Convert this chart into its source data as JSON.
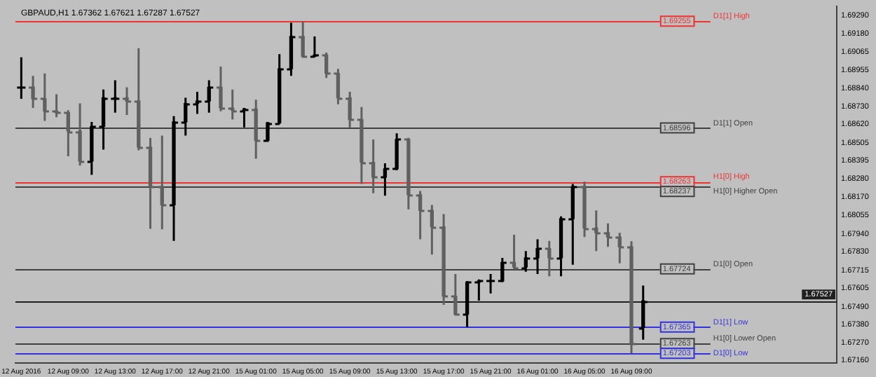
{
  "chart_data": {
    "type": "candlestick",
    "title": "GBPAUD,H1 1.67362 1.67621 1.67287 1.67527",
    "categories": [
      "12 Aug 2016",
      null,
      null,
      null,
      "12 Aug 09:00",
      null,
      null,
      null,
      "12 Aug 13:00",
      null,
      null,
      null,
      "12 Aug 17:00",
      null,
      null,
      null,
      "12 Aug 21:00",
      null,
      null,
      null,
      "15 Aug 01:00",
      null,
      null,
      null,
      "15 Aug 05:00",
      null,
      null,
      null,
      "15 Aug 09:00",
      null,
      null,
      null,
      "15 Aug 13:00",
      null,
      null,
      null,
      "15 Aug 17:00",
      null,
      null,
      null,
      "15 Aug 21:00",
      null,
      null,
      null,
      "16 Aug 01:00",
      null,
      null,
      null,
      "16 Aug 05:00",
      null,
      null,
      null,
      "16 Aug 09:00",
      null,
      null,
      null,
      null,
      null,
      null,
      null,
      null,
      null,
      null,
      null,
      null,
      null,
      null,
      null,
      null,
      null
    ],
    "ohlc": [
      [
        1.68847,
        1.69032,
        1.68776,
        1.68847
      ],
      [
        1.68847,
        1.68918,
        1.68719,
        1.68776
      ],
      [
        1.68776,
        1.68933,
        1.68639,
        1.68699
      ],
      [
        1.68699,
        1.68804,
        1.68662,
        1.6869
      ],
      [
        1.6869,
        1.68705,
        1.6842,
        1.68576
      ],
      [
        1.68576,
        1.68747,
        1.68363,
        1.68391
      ],
      [
        1.68391,
        1.68633,
        1.68306,
        1.68605
      ],
      [
        1.68605,
        1.68833,
        1.68462,
        1.68782
      ],
      [
        1.68782,
        1.6889,
        1.6869,
        1.68782
      ],
      [
        1.68782,
        1.68847,
        1.68676,
        1.68762
      ],
      [
        1.68762,
        1.69089,
        1.68457,
        1.68477
      ],
      [
        1.68477,
        1.68534,
        1.67972,
        1.68234
      ],
      [
        1.68234,
        1.68548,
        1.67969,
        1.6812
      ],
      [
        1.6812,
        1.68668,
        1.67898,
        1.68633
      ],
      [
        1.68633,
        1.68782,
        1.68548,
        1.68747
      ],
      [
        1.68747,
        1.68819,
        1.68682,
        1.68762
      ],
      [
        1.68762,
        1.6889,
        1.6869,
        1.68847
      ],
      [
        1.68847,
        1.68975,
        1.68699,
        1.68719
      ],
      [
        1.68719,
        1.68833,
        1.68648,
        1.68705
      ],
      [
        1.68705,
        1.68719,
        1.68599,
        1.68713
      ],
      [
        1.68713,
        1.6877,
        1.68405,
        1.68519
      ],
      [
        1.68519,
        1.68633,
        1.68519,
        1.68628
      ],
      [
        1.68628,
        1.69052,
        1.68619,
        1.68961
      ],
      [
        1.68961,
        1.69246,
        1.68918,
        1.69161
      ],
      [
        1.69161,
        1.69255,
        1.69032,
        1.69038
      ],
      [
        1.69038,
        1.69161,
        1.69032,
        1.69047
      ],
      [
        1.69047,
        1.69061,
        1.68904,
        1.68933
      ],
      [
        1.68933,
        1.68961,
        1.68742,
        1.68782
      ],
      [
        1.68782,
        1.68819,
        1.68599,
        1.68648
      ],
      [
        1.68648,
        1.68725,
        1.68249,
        1.68383
      ],
      [
        1.68383,
        1.68525,
        1.68192,
        1.68291
      ],
      [
        1.68291,
        1.68377,
        1.68177,
        1.68343
      ],
      [
        1.68343,
        1.68562,
        1.68334,
        1.68525
      ],
      [
        1.68525,
        1.68534,
        1.68092,
        1.68183
      ],
      [
        1.68183,
        1.68206,
        1.67907,
        1.68086
      ],
      [
        1.68086,
        1.6812,
        1.67813,
        1.67984
      ],
      [
        1.67984,
        1.68063,
        1.67502,
        1.67556
      ],
      [
        1.67556,
        1.67693,
        1.67436,
        1.67445
      ],
      [
        1.67445,
        1.6765,
        1.67365,
        1.67642
      ],
      [
        1.67642,
        1.67659,
        1.67528,
        1.6765
      ],
      [
        1.6765,
        1.67693,
        1.67573,
        1.6765
      ],
      [
        1.6765,
        1.67793,
        1.67642,
        1.67764
      ],
      [
        1.67764,
        1.67935,
        1.67727,
        1.67736
      ],
      [
        1.67736,
        1.67835,
        1.67707,
        1.67793
      ],
      [
        1.67793,
        1.67907,
        1.67693,
        1.6785
      ],
      [
        1.6785,
        1.67898,
        1.67679,
        1.67793
      ],
      [
        1.67793,
        1.68049,
        1.67679,
        1.68035
      ],
      [
        1.68035,
        1.68249,
        1.6775,
        1.68234
      ],
      [
        1.68234,
        1.68263,
        1.67921,
        1.67978
      ],
      [
        1.67978,
        1.68086,
        1.67835,
        1.67949
      ],
      [
        1.67949,
        1.68006,
        1.67861,
        1.67921
      ],
      [
        1.67921,
        1.67947,
        1.67759,
        1.67861
      ],
      [
        1.67861,
        1.67895,
        1.67203,
        1.67263
      ],
      [
        1.67362,
        1.67621,
        1.67287,
        1.67527
      ],
      null,
      null,
      null,
      null,
      null,
      null,
      null,
      null,
      null,
      null,
      null,
      null,
      null,
      null,
      null,
      null
    ],
    "colors": [
      "#000000",
      "#606060",
      "#606060",
      "#606060",
      "#606060",
      "#606060",
      "#000000",
      "#000000",
      "#000000",
      "#606060",
      "#606060",
      "#606060",
      "#606060",
      "#000000",
      "#000000",
      "#000000",
      "#000000",
      "#606060",
      "#606060",
      "#000000",
      "#606060",
      "#000000",
      "#000000",
      "#000000",
      "#606060",
      "#000000",
      "#606060",
      "#606060",
      "#606060",
      "#606060",
      "#606060",
      "#000000",
      "#000000",
      "#606060",
      "#606060",
      "#606060",
      "#606060",
      "#606060",
      "#000000",
      "#000000",
      "#000000",
      "#000000",
      "#606060",
      "#000000",
      "#000000",
      "#606060",
      "#000000",
      "#000000",
      "#606060",
      "#606060",
      "#606060",
      "#606060",
      "#606060",
      "#000000",
      null,
      null,
      null,
      null,
      null,
      null,
      null,
      null,
      null,
      null,
      null,
      null,
      null,
      null,
      null,
      null
    ],
    "ylim": [
      1.67143,
      1.69349
    ],
    "yticks": [
      {
        "value": 1.6929,
        "label": "1.69290"
      },
      {
        "value": 1.6918,
        "label": "1.69180"
      },
      {
        "value": 1.69065,
        "label": "1.69065"
      },
      {
        "value": 1.68955,
        "label": "1.68955"
      },
      {
        "value": 1.6884,
        "label": "1.68840"
      },
      {
        "value": 1.6873,
        "label": "1.68730"
      },
      {
        "value": 1.6862,
        "label": "1.68620"
      },
      {
        "value": 1.68505,
        "label": "1.68505"
      },
      {
        "value": 1.68395,
        "label": "1.68395"
      },
      {
        "value": 1.6828,
        "label": "1.68280"
      },
      {
        "value": 1.6817,
        "label": "1.68170"
      },
      {
        "value": 1.68055,
        "label": "1.68055"
      },
      {
        "value": 1.6794,
        "label": "1.67940"
      },
      {
        "value": 1.6783,
        "label": "1.67830"
      },
      {
        "value": 1.67715,
        "label": "1.67715"
      },
      {
        "value": 1.67605,
        "label": "1.67605"
      },
      {
        "value": 1.6749,
        "label": "1.67490"
      },
      {
        "value": 1.6738,
        "label": "1.67380"
      },
      {
        "value": 1.6727,
        "label": "1.67270"
      },
      {
        "value": 1.6716,
        "label": "1.67160"
      }
    ],
    "ref_lines": [
      {
        "axis": "y",
        "value": 1.69255,
        "label": "D1[1] High",
        "color": "#ee3333"
      },
      {
        "axis": "y",
        "value": 1.68596,
        "label": "D1[1] Open",
        "color": "#404040"
      },
      {
        "axis": "y",
        "value": 1.68263,
        "label": "H1[0] High",
        "color": "#ee3333"
      },
      {
        "axis": "y",
        "value": 1.68237,
        "label": "H1[0] Higher Open",
        "color": "#404040"
      },
      {
        "axis": "y",
        "value": 1.67724,
        "label": "D1[0] Open",
        "color": "#404040"
      },
      {
        "axis": "y",
        "value": 1.67527,
        "color": "#202020"
      },
      {
        "axis": "y",
        "value": 1.67365,
        "label": "D1[1] Low",
        "color": "#3333dd"
      },
      {
        "axis": "y",
        "value": 1.67263,
        "label": "H1[0] Lower Open",
        "color": "#404040"
      },
      {
        "axis": "y",
        "value": 1.67203,
        "label": "D1[0] Low",
        "color": "#3333dd"
      }
    ],
    "annotations": [
      {
        "text": "1.69255",
        "y": 1.69255
      },
      {
        "text": "1.68596",
        "y": 1.68596
      },
      {
        "text": "1.68263",
        "y": 1.68263
      },
      {
        "text": "1.68237",
        "y": 1.68237
      },
      {
        "text": "1.67724",
        "y": 1.67724
      },
      {
        "text": "1.67527",
        "y": 1.67527
      },
      {
        "text": "1.67365",
        "y": 1.67365
      },
      {
        "text": "1.67263",
        "y": 1.67263
      },
      {
        "text": "1.67203",
        "y": 1.67203
      }
    ],
    "grid": false,
    "legend": false
  }
}
